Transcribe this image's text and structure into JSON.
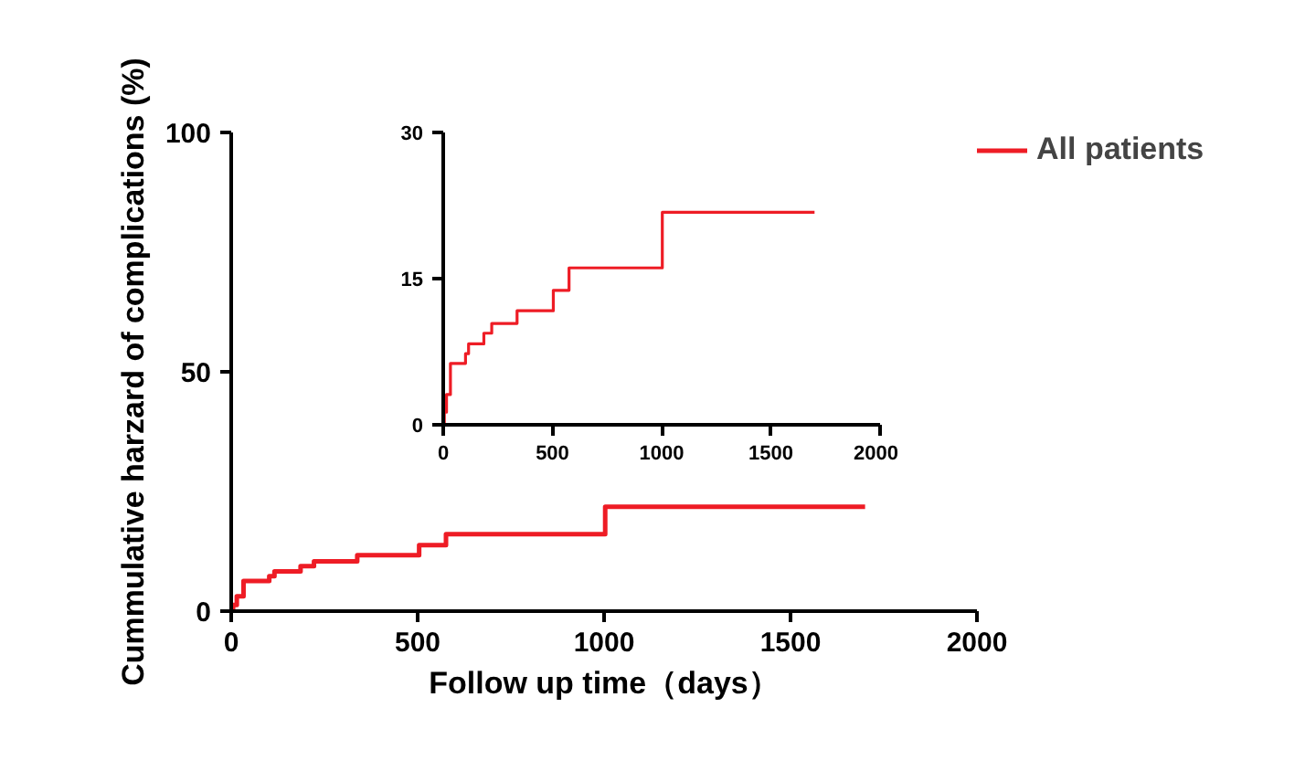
{
  "chart_data": [
    {
      "type": "step",
      "xlabel": "Follow up time（days）",
      "ylabel": "Cummulative harzard of complications (%)",
      "x": [
        0,
        5,
        15,
        33,
        102,
        116,
        186,
        222,
        338,
        504,
        576,
        1003,
        1700
      ],
      "xlim": [
        0,
        2000
      ],
      "ylim": [
        0,
        100
      ],
      "xticks": [
        0,
        500,
        1000,
        1500,
        2000
      ],
      "yticks": [
        0,
        50,
        100
      ],
      "legend": "right",
      "series": [
        {
          "name": "All patients",
          "color": "#ee1c25",
          "values": [
            0,
            1.3,
            3.1,
            6.3,
            7.3,
            8.3,
            9.4,
            10.4,
            11.7,
            13.8,
            16.1,
            21.8,
            21.8
          ]
        }
      ]
    },
    {
      "type": "step",
      "x": [
        0,
        5,
        15,
        33,
        102,
        116,
        186,
        222,
        338,
        504,
        576,
        1003,
        1700
      ],
      "xlim": [
        0,
        2000
      ],
      "ylim": [
        0,
        30
      ],
      "xticks": [
        0,
        500,
        1000,
        1500,
        2000
      ],
      "yticks": [
        0,
        15,
        30
      ],
      "series": [
        {
          "color": "#ee1c25",
          "values": [
            0,
            1.3,
            3.1,
            6.3,
            7.3,
            8.3,
            9.4,
            10.4,
            11.7,
            13.8,
            16.1,
            21.8,
            21.8
          ]
        }
      ]
    }
  ]
}
